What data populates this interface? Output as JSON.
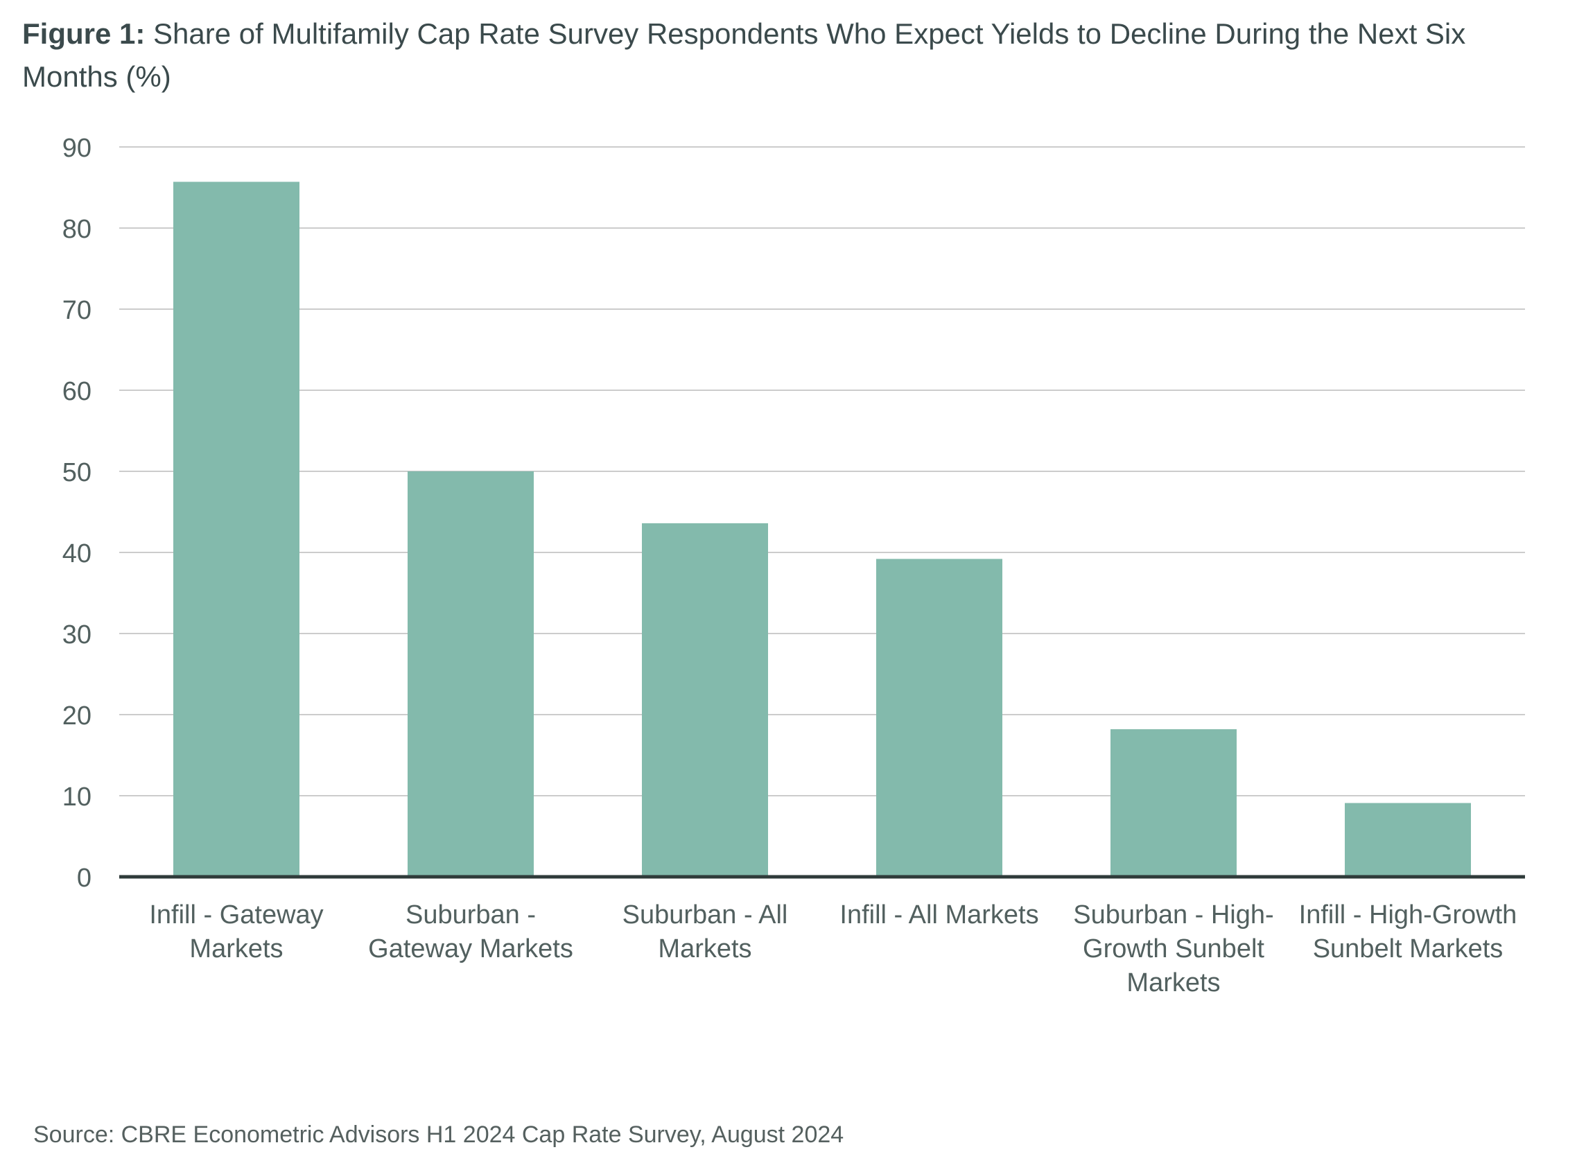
{
  "figure": {
    "label": "Figure 1:",
    "title": "Share of Multifamily Cap Rate Survey Respondents Who Expect Yields to Decline During the Next Six Months (%)",
    "source": "Source: CBRE Econometric Advisors H1 2024 Cap Rate Survey, August 2024"
  },
  "colors": {
    "bar": "#83baac",
    "grid": "#cccccc",
    "baseline": "#2f3b3a",
    "text": "#3b4a4c"
  },
  "chart_data": {
    "type": "bar",
    "title": "Share of Multifamily Cap Rate Survey Respondents Who Expect Yields to Decline During the Next Six Months (%)",
    "xlabel": "",
    "ylabel": "",
    "ylim": [
      0,
      90
    ],
    "yticks": [
      0,
      10,
      20,
      30,
      40,
      50,
      60,
      70,
      80,
      90
    ],
    "grid": true,
    "legend": "none",
    "categories": [
      "Infill - Gateway Markets",
      "Suburban - Gateway Markets",
      "Suburban - All Markets",
      "Infill - All Markets",
      "Suburban - High-Growth Sunbelt Markets",
      "Infill - High-Growth Sunbelt Markets"
    ],
    "category_label_lines": [
      [
        "Infill - Gateway",
        "Markets"
      ],
      [
        "Suburban -",
        "Gateway Markets"
      ],
      [
        "Suburban - All",
        "Markets"
      ],
      [
        "Infill - All Markets"
      ],
      [
        "Suburban - High-",
        "Growth Sunbelt",
        "Markets"
      ],
      [
        "Infill - High-Growth",
        "Sunbelt Markets"
      ]
    ],
    "values": [
      85.7,
      50.0,
      43.6,
      39.2,
      18.2,
      9.1
    ]
  }
}
